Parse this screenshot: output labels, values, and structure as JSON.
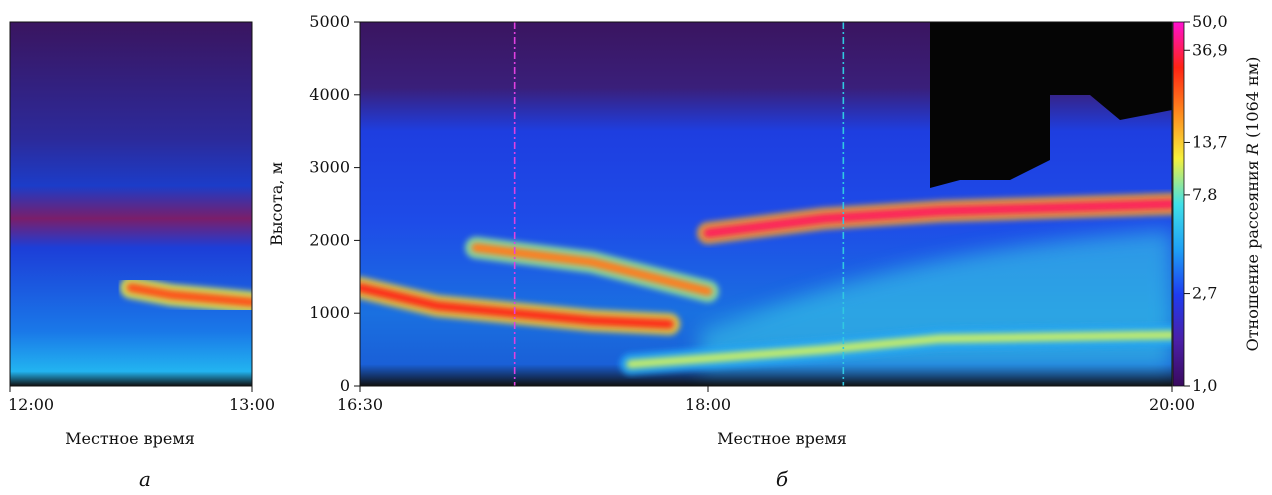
{
  "panels": [
    {
      "letter": "а",
      "xlabel": "Местное время",
      "xticks": [
        "12:00",
        "13:00"
      ],
      "time_range": [
        "12:00",
        "13:00"
      ]
    },
    {
      "letter": "б",
      "xlabel": "Местное время",
      "ylabel": "Высота, м",
      "xticks": [
        "16:30",
        "18:00",
        "20:00"
      ],
      "time_range": [
        "16:30",
        "20:00"
      ]
    }
  ],
  "colorbar": {
    "label_prefix": "Отношение рассеяния ",
    "label_var": "R",
    "label_suffix": " (1064 нм)",
    "ticks": [
      "50,0",
      "36,9",
      "13,7",
      "7,8",
      "2,7",
      "1,0"
    ],
    "tick_values": [
      50.0,
      36.9,
      13.7,
      7.8,
      2.7,
      1.0
    ],
    "scale": "log",
    "range": [
      1.0,
      50.0
    ],
    "colors": [
      "#3a0a5e",
      "#4b1fa8",
      "#1e3cf0",
      "#1ea0f5",
      "#40e0e8",
      "#f5f03c",
      "#ff8a1e",
      "#ff2414",
      "#ff10d0"
    ]
  },
  "chart_data": {
    "type": "heatmap",
    "y_axis": {
      "ylabel": "Высота, м",
      "ylim": [
        0,
        5000
      ],
      "ticks": [
        "0",
        "1000",
        "2000",
        "3000",
        "4000",
        "5000"
      ],
      "tick_values": [
        0,
        1000,
        2000,
        3000,
        4000,
        5000
      ]
    },
    "layers_a": [
      {
        "t": [
          "12:30",
          "12:40",
          "12:50",
          "13:00"
        ],
        "alt": [
          1350,
          1250,
          1200,
          1150
        ],
        "R": 25
      }
    ],
    "layers_b": [
      {
        "t": [
          "16:30",
          "16:50",
          "17:10",
          "17:30",
          "17:50"
        ],
        "alt": [
          1350,
          1100,
          1000,
          900,
          850
        ],
        "R": 30
      },
      {
        "t": [
          "17:00",
          "17:30",
          "18:00"
        ],
        "alt": [
          1900,
          1700,
          1300
        ],
        "R": 20
      },
      {
        "t": [
          "18:00",
          "18:30",
          "19:00",
          "19:30",
          "20:00"
        ],
        "alt": [
          2100,
          2300,
          2400,
          2450,
          2500
        ],
        "R": 36.9
      },
      {
        "t": [
          "17:40",
          "18:30",
          "19:00",
          "20:00"
        ],
        "alt": [
          300,
          500,
          650,
          700
        ],
        "R": 10
      }
    ],
    "markers_b": [
      {
        "t": "17:10",
        "color": "#e040e0"
      },
      {
        "t": "18:35",
        "color": "#30c8e0"
      }
    ]
  }
}
